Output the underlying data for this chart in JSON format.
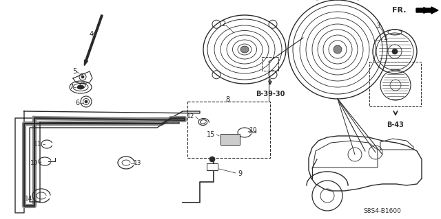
{
  "bg_color": "#ffffff",
  "lc": "#2a2a2a",
  "diagram_code": "S8S4-B1600",
  "fr_label": "FR.",
  "ref_b3930": "B-39-30",
  "ref_b43": "B-43"
}
